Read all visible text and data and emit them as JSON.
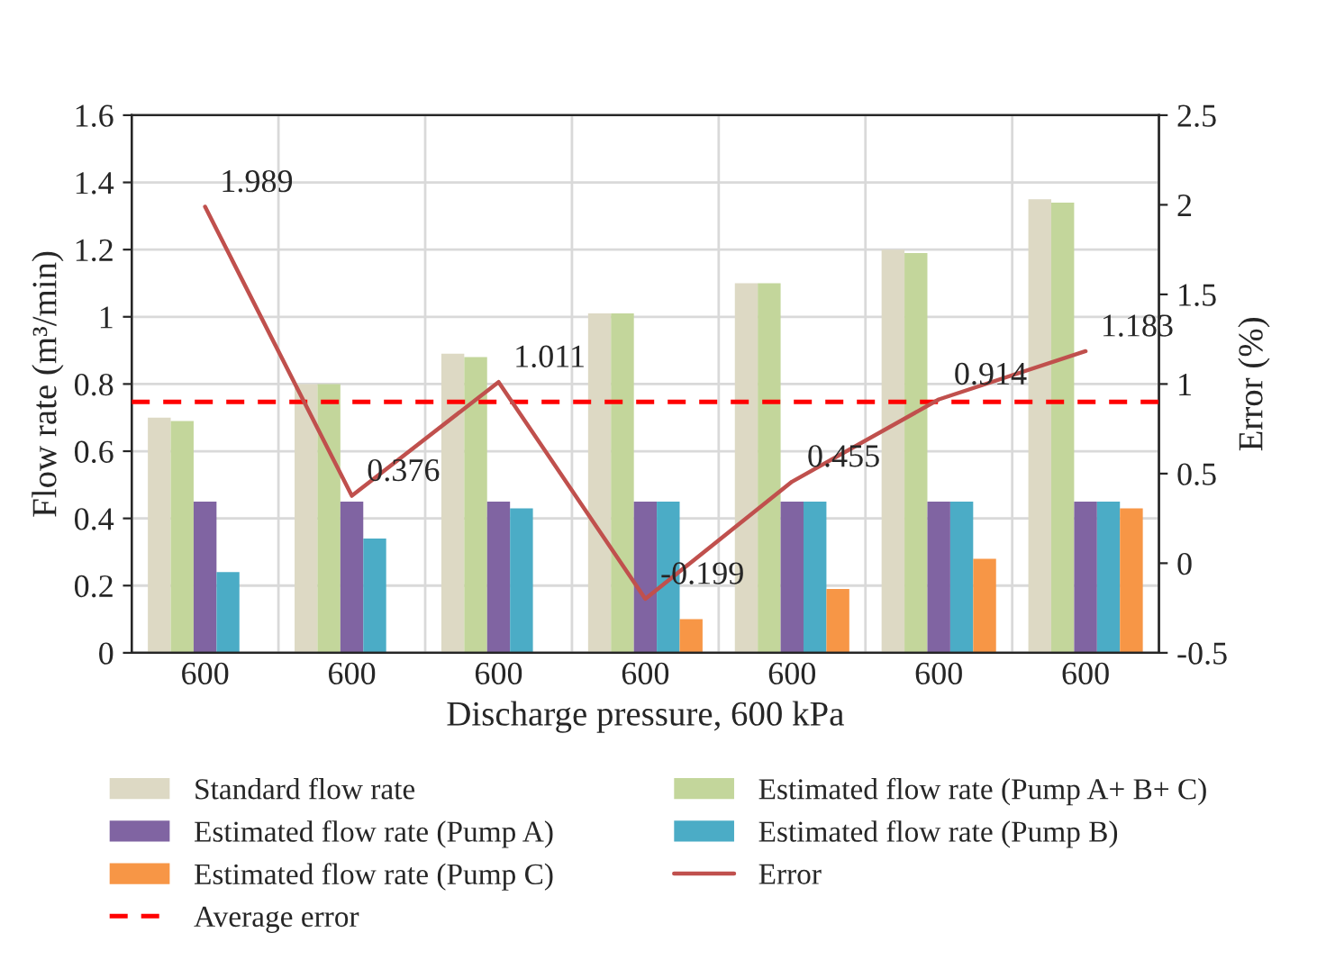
{
  "chart_data": {
    "type": "bar",
    "xlabel": "Discharge pressure, 600 kPa",
    "ylabel": "Flow rate (m³/min)",
    "y2label": "Error (%)",
    "categories": [
      "600",
      "600",
      "600",
      "600",
      "600",
      "600",
      "600"
    ],
    "series": [
      {
        "name": "Standard flow rate",
        "color": "#ddd9c4",
        "values": [
          0.7,
          0.8,
          0.89,
          1.01,
          1.1,
          1.2,
          1.35
        ]
      },
      {
        "name": "Estimated flow rate (Pump A+ B+ C)",
        "color": "#c3d69b",
        "values": [
          0.69,
          0.8,
          0.88,
          1.01,
          1.1,
          1.19,
          1.34
        ]
      },
      {
        "name": "Estimated flow rate (Pump A)",
        "color": "#8064a2",
        "values": [
          0.45,
          0.45,
          0.45,
          0.45,
          0.45,
          0.45,
          0.45
        ]
      },
      {
        "name": "Estimated flow rate (Pump B)",
        "color": "#4bacc6",
        "values": [
          0.24,
          0.34,
          0.43,
          0.45,
          0.45,
          0.45,
          0.45
        ]
      },
      {
        "name": "Estimated flow rate (Pump C)",
        "color": "#f79646",
        "values": [
          null,
          null,
          null,
          0.1,
          0.19,
          0.28,
          0.43
        ]
      },
      {
        "name": "Error",
        "type": "line",
        "axis": "y2",
        "color": "#c0504d",
        "data_labels": true,
        "values": [
          1.989,
          0.376,
          1.011,
          -0.199,
          0.455,
          0.914,
          1.183
        ]
      }
    ],
    "ref_lines": [
      {
        "axis": "y2",
        "value": 0.9,
        "label": "Average error",
        "color": "#ff0000",
        "line_style": "dashed"
      }
    ],
    "ylim": [
      0,
      1.6
    ],
    "yticks": [
      {
        "value": 0,
        "label": "0"
      },
      0.2,
      0.4,
      0.6,
      0.8,
      {
        "value": 1.0,
        "label": "1"
      },
      1.2,
      1.4,
      1.6
    ],
    "y2lim": [
      -0.5,
      2.5
    ],
    "y2ticks": [
      -0.5,
      0,
      0.5,
      1,
      1.5,
      2,
      2.5
    ],
    "grid": true,
    "legend": "bottom"
  }
}
